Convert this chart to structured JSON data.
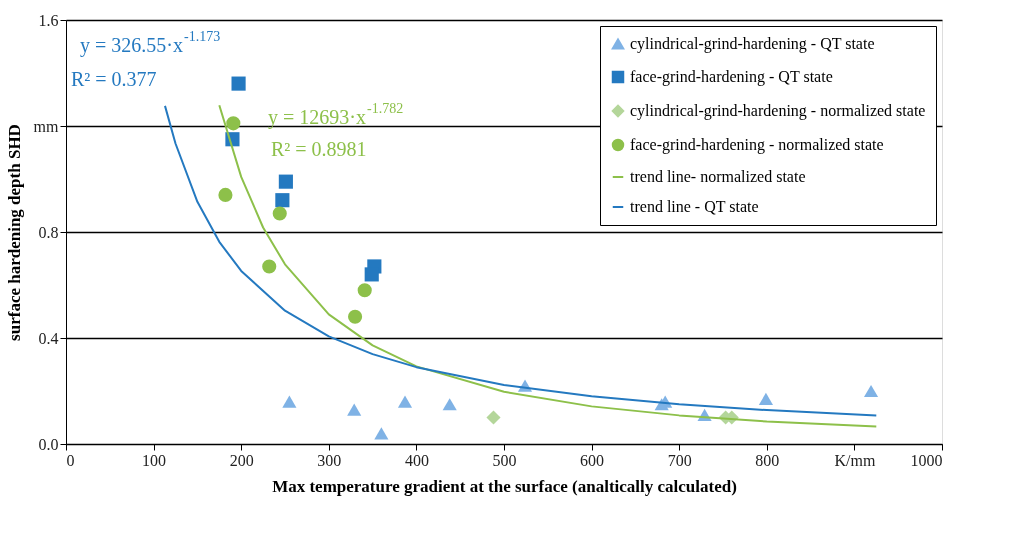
{
  "chart_data": {
    "type": "scatter",
    "xlabel": "Max temperature gradient at the surface (analtically calculated)",
    "ylabel": "surface hardening depth SHD",
    "xlim": [
      0,
      1000
    ],
    "ylim": [
      0,
      1.6
    ],
    "xticks": [
      0,
      100,
      200,
      300,
      400,
      500,
      600,
      700,
      800,
      {
        "value": 900,
        "label": "K/mm"
      },
      {
        "value": 1000,
        "label": "1000"
      }
    ],
    "yticks": [
      {
        "value": 0,
        "label": "0.0"
      },
      {
        "value": 0.4,
        "label": "0.4"
      },
      {
        "value": 0.8,
        "label": "0.8"
      },
      {
        "value": 1.2,
        "label": "mm"
      },
      {
        "value": 1.6,
        "label": "1.6"
      }
    ],
    "grid": "y",
    "legend": "top right",
    "series": [
      {
        "name": "cylindrical-grind-hardening - QT state",
        "marker": "triangle",
        "color": "#7fb2e5",
        "x": [
          255,
          329,
          360,
          387,
          438,
          524,
          680,
          684,
          729,
          799,
          919
        ],
        "values": [
          0.16,
          0.13,
          0.04,
          0.16,
          0.15,
          0.22,
          0.15,
          0.16,
          0.11,
          0.17,
          0.2
        ]
      },
      {
        "name": "face-grind-hardening - QT state",
        "marker": "square",
        "color": "#2479c0",
        "x": [
          197,
          190,
          251,
          247,
          352,
          349
        ],
        "values": [
          1.36,
          1.15,
          0.99,
          0.92,
          0.67,
          0.64
        ]
      },
      {
        "name": "cylindrical-grind-hardening - normalized state",
        "marker": "diamond",
        "color": "#b4d69a",
        "x": [
          488,
          753,
          760
        ],
        "values": [
          0.1,
          0.1,
          0.1
        ]
      },
      {
        "name": "face-grind-hardening - normalized state",
        "marker": "circle",
        "color": "#8dc04a",
        "x": [
          191,
          182,
          244,
          232,
          341,
          330
        ],
        "values": [
          1.21,
          0.94,
          0.87,
          0.67,
          0.58,
          0.48
        ]
      },
      {
        "name": "trend line- normalized state",
        "type": "line",
        "marker": "none",
        "color": "#8dc04a",
        "x": [
          175,
          200,
          225,
          250,
          300,
          350,
          400,
          500,
          600,
          700,
          800,
          925
        ],
        "values": [
          1.278,
          1.008,
          0.817,
          0.678,
          0.489,
          0.372,
          0.293,
          0.197,
          0.142,
          0.108,
          0.085,
          0.066
        ]
      },
      {
        "name": "trend line - QT state",
        "type": "line",
        "marker": "none",
        "color": "#2479c0",
        "x": [
          113,
          125,
          150,
          175,
          200,
          250,
          300,
          350,
          400,
          500,
          600,
          700,
          800,
          925
        ],
        "values": [
          1.276,
          1.134,
          0.914,
          0.763,
          0.653,
          0.503,
          0.406,
          0.339,
          0.29,
          0.223,
          0.18,
          0.15,
          0.128,
          0.108
        ]
      }
    ],
    "annotations": [
      "y = 326.55·x$^{-1.173}$",
      "R² = 0.377",
      "y = 12693·x$^{-1.782}$",
      "R² = 0.8981"
    ]
  }
}
